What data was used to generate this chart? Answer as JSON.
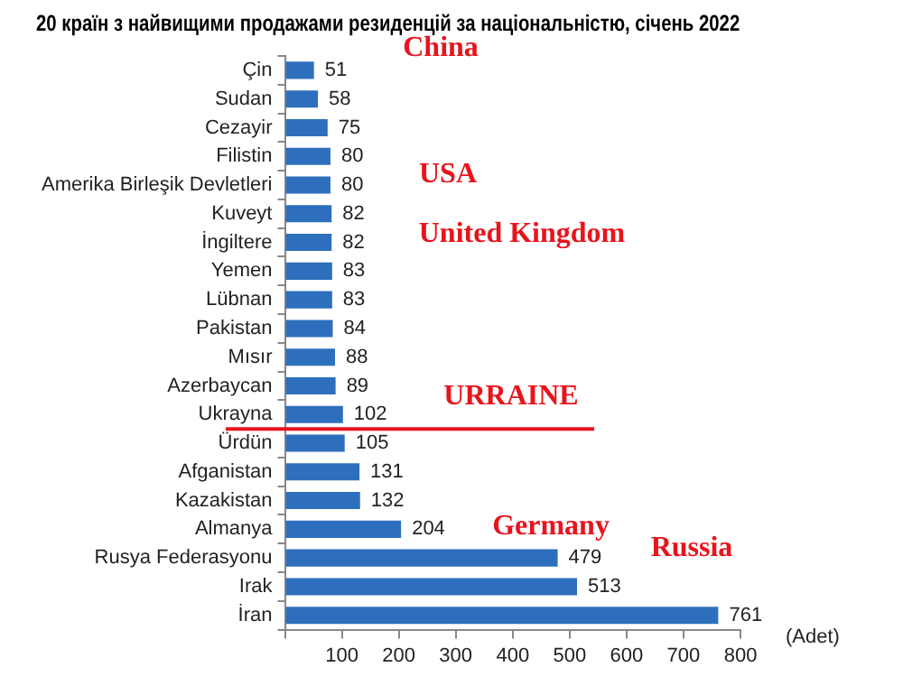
{
  "chart_data": {
    "type": "bar",
    "orientation": "horizontal",
    "title": "20 країн з найвищими продажами резиденцій за національністю, січень 2022",
    "xlabel": "(Adet)",
    "categories": [
      "Çin",
      "Sudan",
      "Cezayir",
      "Filistin",
      "Amerika Birleşik Devletleri",
      "Kuveyt",
      "İngiltere",
      "Yemen",
      "Lübnan",
      "Pakistan",
      "Mısır",
      "Azerbaycan",
      "Ukrayna",
      "Ürdün",
      "Afganistan",
      "Kazakistan",
      "Almanya",
      "Rusya Federasyonu",
      "Irak",
      "İran"
    ],
    "values": [
      51,
      58,
      75,
      80,
      80,
      82,
      82,
      83,
      83,
      84,
      88,
      89,
      102,
      105,
      131,
      132,
      204,
      479,
      513,
      761
    ],
    "color": "#2e6fbd",
    "xlim": [
      0,
      800
    ],
    "xticks": [
      {
        "value": 0,
        "label": null
      },
      100,
      200,
      300,
      400,
      500,
      600,
      700,
      800
    ],
    "data_labels": true,
    "grid": false,
    "legend": false,
    "ref_lines": [
      {
        "axis": "y",
        "value": "Ukrayna",
        "color": "#e8141c"
      }
    ],
    "annotations": [
      "China",
      "USA",
      "United Kingdom",
      "URRAINE",
      "Germany",
      "Russia"
    ]
  }
}
